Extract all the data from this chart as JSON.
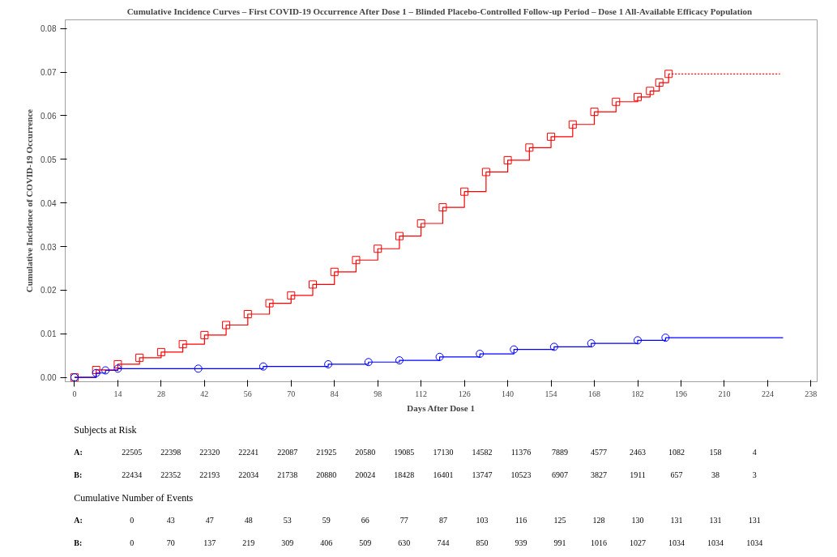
{
  "chart_data": {
    "type": "step",
    "title": "Cumulative Incidence Curves – First COVID-19 Occurrence After Dose 1  – Blinded Placebo-Controlled Follow-up Period – Dose 1 All-Available Efficacy Population",
    "xlabel": "Days After Dose 1",
    "ylabel": "Cumulative Incidence of COVID-19 Occurrence",
    "xlim": [
      -3,
      240
    ],
    "ylim": [
      -0.001,
      0.082
    ],
    "xticks": [
      0,
      14,
      28,
      42,
      56,
      70,
      84,
      98,
      112,
      126,
      140,
      154,
      168,
      182,
      196,
      210,
      224,
      238
    ],
    "yticks": [
      {
        "value": 0,
        "label": "0.00"
      },
      {
        "value": 0.01,
        "label": "0.01"
      },
      {
        "value": 0.02,
        "label": "0.02"
      },
      {
        "value": 0.03,
        "label": "0.03"
      },
      {
        "value": 0.04,
        "label": "0.04"
      },
      {
        "value": 0.05,
        "label": "0.05"
      },
      {
        "value": 0.06,
        "label": "0.06"
      },
      {
        "value": 0.07,
        "label": "0.07"
      },
      {
        "value": 0.08,
        "label": "0.08"
      }
    ],
    "series": [
      {
        "color": "#ff0000",
        "marker": "square",
        "line_style": "solid",
        "x": [
          0,
          7,
          14,
          21,
          28,
          35,
          42,
          49,
          56,
          63,
          70,
          77,
          84,
          91,
          98,
          105,
          112,
          119,
          126,
          133,
          140,
          147,
          154,
          161,
          168,
          175,
          182,
          186,
          189,
          192
        ],
        "values": [
          0,
          0.0017,
          0.003,
          0.0045,
          0.0058,
          0.0076,
          0.0097,
          0.012,
          0.0145,
          0.017,
          0.0188,
          0.0213,
          0.0242,
          0.0269,
          0.0295,
          0.0324,
          0.0353,
          0.039,
          0.0426,
          0.0471,
          0.0498,
          0.0527,
          0.0552,
          0.058,
          0.0609,
          0.0632,
          0.0643,
          0.0657,
          0.0676,
          0.0696
        ]
      },
      {
        "color": "#ff0000",
        "marker": "none",
        "line_style": "dotted",
        "x": [
          192,
          228
        ],
        "values": [
          0.0696,
          0.0696
        ]
      },
      {
        "color": "#0000ff",
        "marker": "circle",
        "line_style": "solid",
        "x": [
          0,
          7,
          10,
          14,
          40,
          61,
          82,
          95,
          105,
          118,
          131,
          142,
          155,
          167,
          182,
          191
        ],
        "values": [
          0,
          0.001,
          0.0016,
          0.002,
          0.002,
          0.0025,
          0.003,
          0.0035,
          0.0039,
          0.0047,
          0.0054,
          0.0064,
          0.007,
          0.0078,
          0.0085,
          0.0091
        ]
      },
      {
        "color": "#0000ff",
        "marker": "none",
        "line_style": "solid",
        "x": [
          191,
          229
        ],
        "values": [
          0.0091,
          0.0091
        ]
      }
    ],
    "annotations": [
      "Subjects at Risk",
      "A:",
      "22505",
      "22398",
      "22320",
      "22241",
      "22087",
      "21925",
      "20580",
      "19085",
      "17130",
      "14582",
      "11376",
      "7889",
      "4577",
      "2463",
      "1082",
      "158",
      "4",
      "B:",
      "22434",
      "22352",
      "22193",
      "22034",
      "21738",
      "20880",
      "20024",
      "18428",
      "16401",
      "13747",
      "10523",
      "6907",
      "3827",
      "1911",
      "657",
      "38",
      "3",
      "Cumulative Number of Events",
      "A:",
      "0",
      "43",
      "47",
      "48",
      "53",
      "59",
      "66",
      "77",
      "87",
      "103",
      "116",
      "125",
      "128",
      "130",
      "131",
      "131",
      "131",
      "B:",
      "0",
      "70",
      "137",
      "219",
      "309",
      "406",
      "509",
      "630",
      "744",
      "850",
      "939",
      "991",
      "1016",
      "1027",
      "1034",
      "1034",
      "1034"
    ]
  }
}
